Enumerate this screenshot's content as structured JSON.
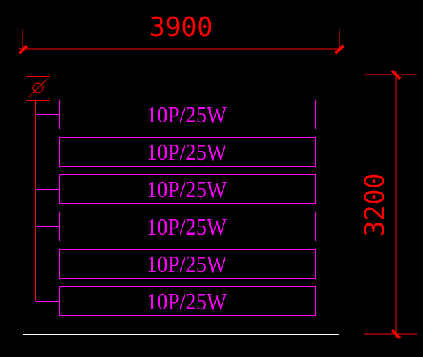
{
  "dimensions": {
    "width_label": "3900",
    "height_label": "3200"
  },
  "panel": {
    "symbol_icon": "diameter-symbol",
    "circuits": [
      {
        "label": "10P/25W"
      },
      {
        "label": "10P/25W"
      },
      {
        "label": "10P/25W"
      },
      {
        "label": "10P/25W"
      },
      {
        "label": "10P/25W"
      },
      {
        "label": "10P/25W"
      }
    ]
  },
  "colors": {
    "dimension": "#ff0000",
    "circuit": "#ff00ff",
    "outline": "#ffffff",
    "background": "#000000"
  }
}
